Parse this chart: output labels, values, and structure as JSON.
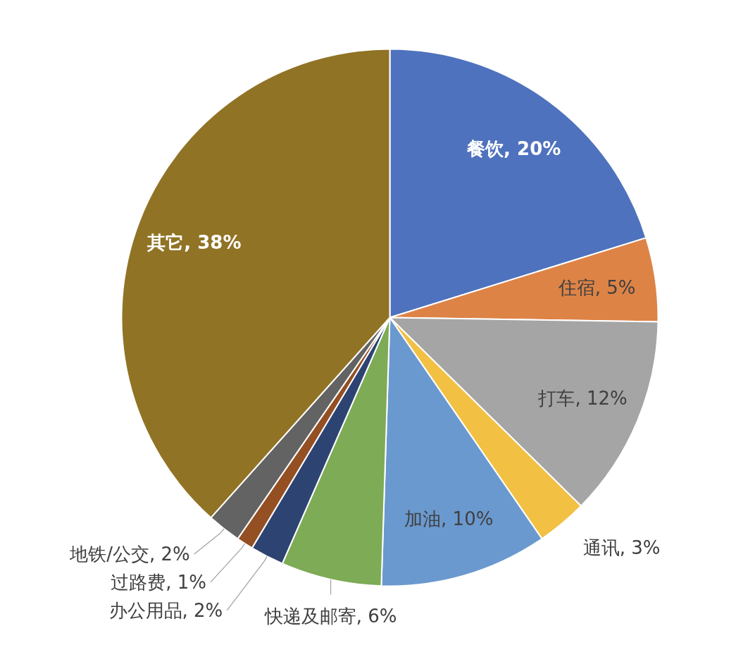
{
  "chart_data": {
    "type": "pie",
    "categories": [
      "餐饮",
      "住宿",
      "打车",
      "通讯",
      "加油",
      "快递及邮寄",
      "办公用品",
      "过路费",
      "地铁/公交",
      "其它"
    ],
    "values": [
      20,
      5,
      12,
      3,
      10,
      6,
      2,
      1,
      2,
      38
    ],
    "colors": [
      "#4e72bd",
      "#dd8346",
      "#a5a5a5",
      "#f2c043",
      "#6a99cf",
      "#7eab55",
      "#2d4473",
      "#944f23",
      "#636363",
      "#917325"
    ],
    "value_labels": [
      "20%",
      "5%",
      "12%",
      "3%",
      "10%",
      "6%",
      "2%",
      "1%",
      "2%",
      "38%"
    ]
  }
}
